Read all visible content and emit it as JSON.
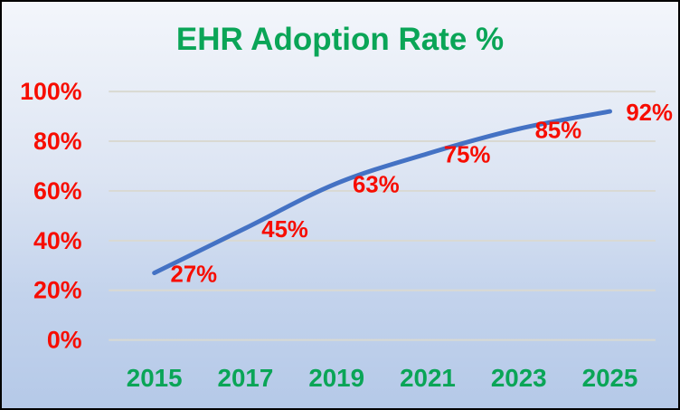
{
  "chart_data": {
    "type": "line",
    "title": "EHR Adoption Rate %",
    "categories": [
      "2015",
      "2017",
      "2019",
      "2021",
      "2023",
      "2025"
    ],
    "values": [
      27,
      45,
      63,
      75,
      85,
      92
    ],
    "data_labels": [
      "27%",
      "45%",
      "63%",
      "75%",
      "85%",
      "92%"
    ],
    "y_ticks": [
      {
        "value": 0,
        "label": "0%"
      },
      {
        "value": 20,
        "label": "20%"
      },
      {
        "value": 40,
        "label": "40%"
      },
      {
        "value": 60,
        "label": "60%"
      },
      {
        "value": 80,
        "label": "80%"
      },
      {
        "value": 100,
        "label": "100%"
      }
    ],
    "ylim": [
      0,
      100
    ],
    "xlabel": "",
    "ylabel": "",
    "grid": true,
    "legend": false,
    "line_smooth": true
  },
  "colors": {
    "title_green": "#0aa557",
    "x_label_green": "#0aa557",
    "value_red": "#f70d00",
    "line_blue": "#4472c4",
    "gridline": "#d9d9d2",
    "background_top": "#f3f6fb",
    "background_bottom": "#b5c9e8",
    "border": "#000000"
  }
}
